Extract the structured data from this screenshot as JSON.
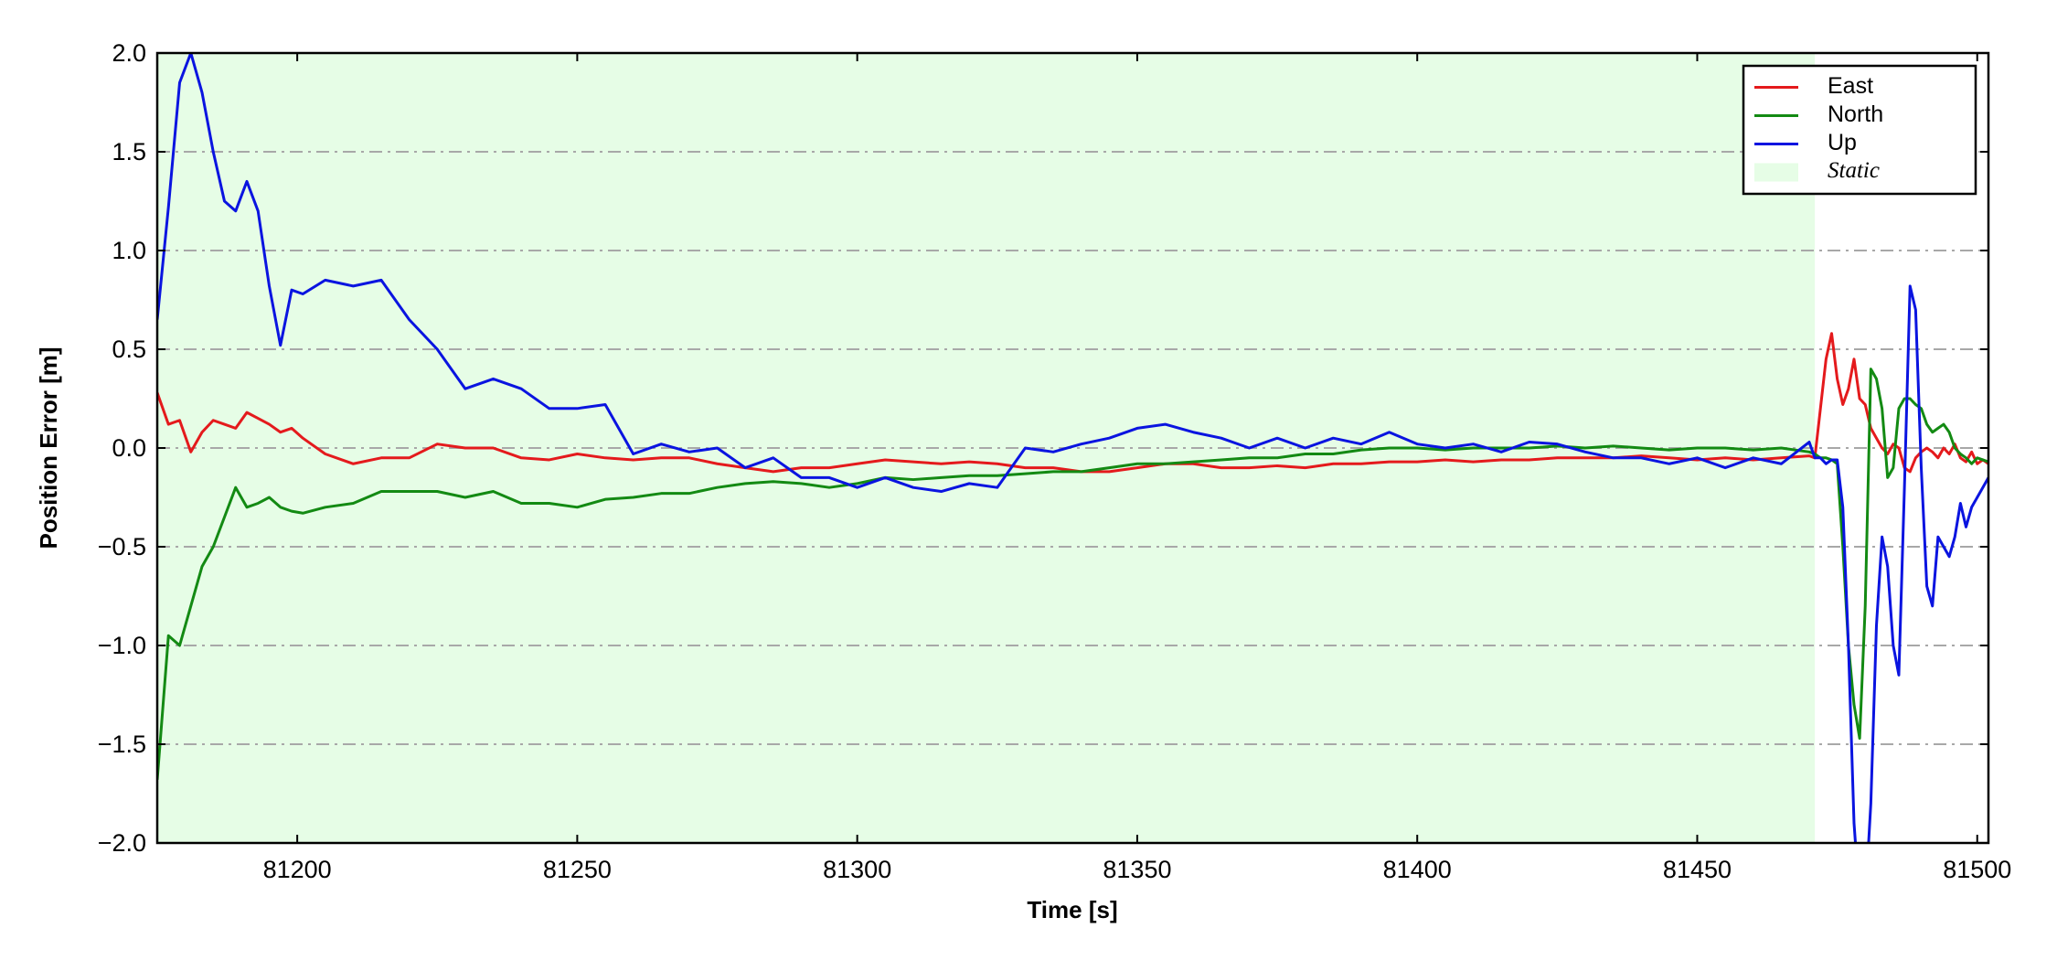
{
  "chart_data": {
    "type": "line",
    "x_label": "Time [s]",
    "y_label": "Position Error [m]",
    "xlim": [
      81175,
      81502
    ],
    "ylim": [
      -2.0,
      2.0
    ],
    "xticks": [
      81200,
      81250,
      81300,
      81350,
      81400,
      81450,
      81500
    ],
    "yticks": [
      {
        "value": -2.0,
        "label": "−2.0"
      },
      {
        "value": -1.5,
        "label": "−1.5"
      },
      {
        "value": -1.0,
        "label": "−1.0"
      },
      {
        "value": -0.5,
        "label": "−0.5"
      },
      {
        "value": 0.0,
        "label": "0.0"
      },
      {
        "value": 0.5,
        "label": "0.5"
      },
      {
        "value": 1.0,
        "label": "1.0"
      },
      {
        "value": 1.5,
        "label": "1.5"
      },
      {
        "value": 2.0,
        "label": "2.0"
      }
    ],
    "grid": true,
    "legend": "upper right",
    "x": [
      81175,
      81177,
      81179,
      81181,
      81183,
      81185,
      81187,
      81189,
      81191,
      81193,
      81195,
      81197,
      81199,
      81201,
      81205,
      81210,
      81215,
      81220,
      81225,
      81230,
      81235,
      81240,
      81245,
      81250,
      81255,
      81260,
      81265,
      81270,
      81275,
      81280,
      81285,
      81290,
      81295,
      81300,
      81305,
      81310,
      81315,
      81320,
      81325,
      81330,
      81335,
      81340,
      81345,
      81350,
      81355,
      81360,
      81365,
      81370,
      81375,
      81380,
      81385,
      81390,
      81395,
      81400,
      81405,
      81410,
      81415,
      81420,
      81425,
      81430,
      81435,
      81440,
      81445,
      81450,
      81455,
      81460,
      81465,
      81470,
      81471,
      81472,
      81473,
      81474,
      81475,
      81476,
      81477,
      81478,
      81479,
      81480,
      81481,
      81482,
      81483,
      81484,
      81485,
      81486,
      81487,
      81488,
      81489,
      81490,
      81491,
      81492,
      81493,
      81494,
      81495,
      81496,
      81497,
      81498,
      81499,
      81500,
      81501,
      81502
    ],
    "series": [
      {
        "name": "East",
        "color": "#e41a1c",
        "values": [
          0.28,
          0.12,
          0.14,
          -0.02,
          0.08,
          0.14,
          0.12,
          0.1,
          0.18,
          0.15,
          0.12,
          0.08,
          0.1,
          0.05,
          -0.03,
          -0.08,
          -0.05,
          -0.05,
          0.02,
          0.0,
          0.0,
          -0.05,
          -0.06,
          -0.03,
          -0.05,
          -0.06,
          -0.05,
          -0.05,
          -0.08,
          -0.1,
          -0.12,
          -0.1,
          -0.1,
          -0.08,
          -0.06,
          -0.07,
          -0.08,
          -0.07,
          -0.08,
          -0.1,
          -0.1,
          -0.12,
          -0.12,
          -0.1,
          -0.08,
          -0.08,
          -0.1,
          -0.1,
          -0.09,
          -0.1,
          -0.08,
          -0.08,
          -0.07,
          -0.07,
          -0.06,
          -0.07,
          -0.06,
          -0.06,
          -0.05,
          -0.05,
          -0.05,
          -0.04,
          -0.05,
          -0.06,
          -0.05,
          -0.06,
          -0.05,
          -0.04,
          -0.05,
          0.2,
          0.45,
          0.58,
          0.35,
          0.22,
          0.3,
          0.45,
          0.25,
          0.22,
          0.1,
          0.05,
          0.0,
          -0.03,
          0.02,
          0.0,
          -0.1,
          -0.12,
          -0.05,
          -0.02,
          0.0,
          -0.02,
          -0.05,
          0.0,
          -0.03,
          0.02,
          -0.05,
          -0.07,
          -0.02,
          -0.08,
          -0.06,
          -0.08
        ]
      },
      {
        "name": "North",
        "color": "#138a13",
        "values": [
          -1.68,
          -0.95,
          -1.0,
          -0.8,
          -0.6,
          -0.5,
          -0.35,
          -0.2,
          -0.3,
          -0.28,
          -0.25,
          -0.3,
          -0.32,
          -0.33,
          -0.3,
          -0.28,
          -0.22,
          -0.22,
          -0.22,
          -0.25,
          -0.22,
          -0.28,
          -0.28,
          -0.3,
          -0.26,
          -0.25,
          -0.23,
          -0.23,
          -0.2,
          -0.18,
          -0.17,
          -0.18,
          -0.2,
          -0.18,
          -0.15,
          -0.16,
          -0.15,
          -0.14,
          -0.14,
          -0.13,
          -0.12,
          -0.12,
          -0.1,
          -0.08,
          -0.08,
          -0.07,
          -0.06,
          -0.05,
          -0.05,
          -0.03,
          -0.03,
          -0.01,
          0.0,
          0.0,
          -0.01,
          0.0,
          0.0,
          0.0,
          0.01,
          0.0,
          0.01,
          0.0,
          -0.01,
          0.0,
          0.0,
          -0.01,
          0.0,
          -0.02,
          -0.03,
          -0.05,
          -0.05,
          -0.06,
          -0.08,
          -0.5,
          -1.0,
          -1.3,
          -1.47,
          -0.8,
          0.4,
          0.35,
          0.2,
          -0.15,
          -0.1,
          0.2,
          0.25,
          0.25,
          0.22,
          0.2,
          0.12,
          0.08,
          0.1,
          0.12,
          0.08,
          0.0,
          -0.03,
          -0.05,
          -0.08,
          -0.05,
          -0.06,
          -0.07
        ]
      },
      {
        "name": "Up",
        "color": "#0a14e0",
        "values": [
          0.65,
          1.22,
          1.85,
          2.0,
          1.8,
          1.5,
          1.25,
          1.2,
          1.35,
          1.2,
          0.82,
          0.52,
          0.8,
          0.78,
          0.85,
          0.82,
          0.85,
          0.65,
          0.5,
          0.3,
          0.35,
          0.3,
          0.2,
          0.2,
          0.22,
          -0.03,
          0.02,
          -0.02,
          0.0,
          -0.1,
          -0.05,
          -0.15,
          -0.15,
          -0.2,
          -0.15,
          -0.2,
          -0.22,
          -0.18,
          -0.2,
          0.0,
          -0.02,
          0.02,
          0.05,
          0.1,
          0.12,
          0.08,
          0.05,
          0.0,
          0.05,
          0.0,
          0.05,
          0.02,
          0.08,
          0.02,
          0.0,
          0.02,
          -0.02,
          0.03,
          0.02,
          -0.02,
          -0.05,
          -0.05,
          -0.08,
          -0.05,
          -0.1,
          -0.05,
          -0.08,
          0.03,
          -0.05,
          -0.05,
          -0.08,
          -0.06,
          -0.06,
          -0.3,
          -1.0,
          -1.9,
          -2.3,
          -2.3,
          -1.8,
          -0.9,
          -0.45,
          -0.6,
          -1.0,
          -1.15,
          -0.2,
          0.82,
          0.7,
          -0.1,
          -0.7,
          -0.8,
          -0.45,
          -0.5,
          -0.55,
          -0.45,
          -0.28,
          -0.4,
          -0.3,
          -0.25,
          -0.2,
          -0.15
        ]
      }
    ],
    "shaded_regions": [
      {
        "name": "Static",
        "start": 81175,
        "end": 81471,
        "color": "#e6fde6"
      }
    ]
  }
}
